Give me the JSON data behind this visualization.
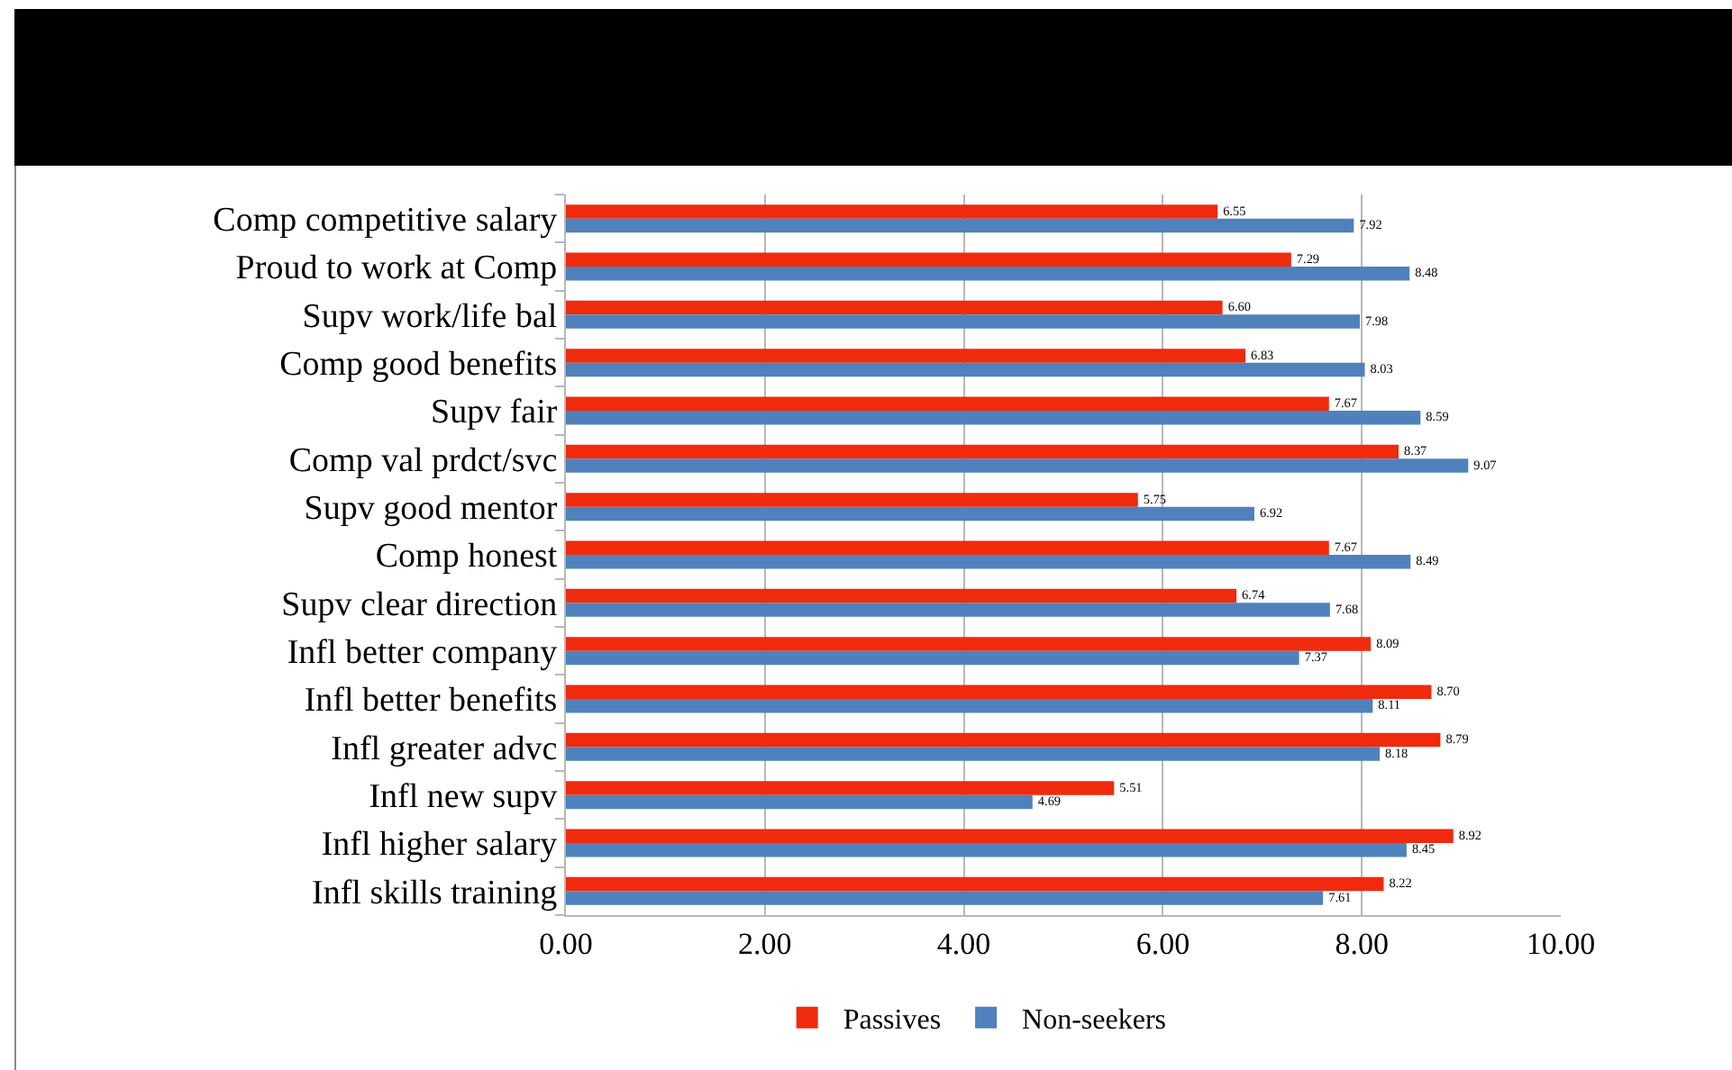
{
  "chart_data": {
    "type": "bar",
    "orientation": "horizontal",
    "categories": [
      "Comp competitive salary",
      "Proud to work at Comp",
      "Supv work/life bal",
      "Comp good benefits",
      "Supv fair",
      "Comp val prdct/svc",
      "Supv good mentor",
      "Comp honest",
      "Supv clear direction",
      "Infl better company",
      "Infl better benefits",
      "Infl greater advc",
      "Infl new supv",
      "Infl higher salary",
      "Infl skills training"
    ],
    "series": [
      {
        "name": "Passives",
        "color": "#f02a0c",
        "values": [
          6.55,
          7.29,
          6.6,
          6.83,
          7.67,
          8.37,
          5.75,
          7.67,
          6.74,
          8.09,
          8.7,
          8.79,
          5.51,
          8.92,
          8.22
        ],
        "value_labels": [
          "6.55",
          "7.29",
          "6.60",
          "6.83",
          "7.67",
          "8.37",
          "5.75",
          "7.67",
          "6.74",
          "8.09",
          "8.70",
          "8.79",
          "5.51",
          "8.92",
          "8.22"
        ]
      },
      {
        "name": "Non-seekers",
        "color": "#4f81bd",
        "values": [
          7.92,
          8.48,
          7.98,
          8.03,
          8.59,
          9.07,
          6.92,
          8.49,
          7.68,
          7.37,
          8.11,
          8.18,
          4.69,
          8.45,
          7.61
        ],
        "value_labels": [
          "7.92",
          "8.48",
          "7.98",
          "8.03",
          "8.59",
          "9.07",
          "6.92",
          "8.49",
          "7.68",
          "7.37",
          "8.11",
          "8.18",
          "4.69",
          "8.45",
          "7.61"
        ]
      }
    ],
    "xlim": [
      0,
      10
    ],
    "xticks": [
      {
        "value": 0,
        "label": "0.00"
      },
      {
        "value": 2,
        "label": "2.00"
      },
      {
        "value": 4,
        "label": "4.00"
      },
      {
        "value": 6,
        "label": "6.00"
      },
      {
        "value": 8,
        "label": "8.00"
      },
      {
        "value": 10,
        "label": "10.00"
      }
    ],
    "grid": "x",
    "legend": "bottom"
  }
}
